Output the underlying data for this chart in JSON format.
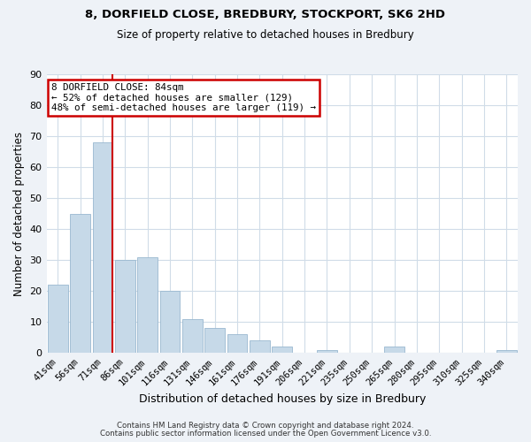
{
  "title1": "8, DORFIELD CLOSE, BREDBURY, STOCKPORT, SK6 2HD",
  "title2": "Size of property relative to detached houses in Bredbury",
  "xlabel": "Distribution of detached houses by size in Bredbury",
  "ylabel": "Number of detached properties",
  "bar_labels": [
    "41sqm",
    "56sqm",
    "71sqm",
    "86sqm",
    "101sqm",
    "116sqm",
    "131sqm",
    "146sqm",
    "161sqm",
    "176sqm",
    "191sqm",
    "206sqm",
    "221sqm",
    "235sqm",
    "250sqm",
    "265sqm",
    "280sqm",
    "295sqm",
    "310sqm",
    "325sqm",
    "340sqm"
  ],
  "bar_values": [
    22,
    45,
    68,
    30,
    31,
    20,
    11,
    8,
    6,
    4,
    2,
    0,
    1,
    0,
    0,
    2,
    0,
    0,
    0,
    0,
    1
  ],
  "bar_color": "#c6d9e8",
  "bar_edge_color": "#9ab8d0",
  "vline_color": "#cc0000",
  "annotation_title": "8 DORFIELD CLOSE: 84sqm",
  "annotation_line1": "← 52% of detached houses are smaller (129)",
  "annotation_line2": "48% of semi-detached houses are larger (119) →",
  "annotation_box_facecolor": "white",
  "annotation_box_edgecolor": "#cc0000",
  "ylim": [
    0,
    90
  ],
  "yticks": [
    0,
    10,
    20,
    30,
    40,
    50,
    60,
    70,
    80,
    90
  ],
  "footer1": "Contains HM Land Registry data © Crown copyright and database right 2024.",
  "footer2": "Contains public sector information licensed under the Open Government Licence v3.0.",
  "bg_color": "#eef2f7",
  "plot_bg_color": "#ffffff",
  "grid_color": "#d0dce8"
}
